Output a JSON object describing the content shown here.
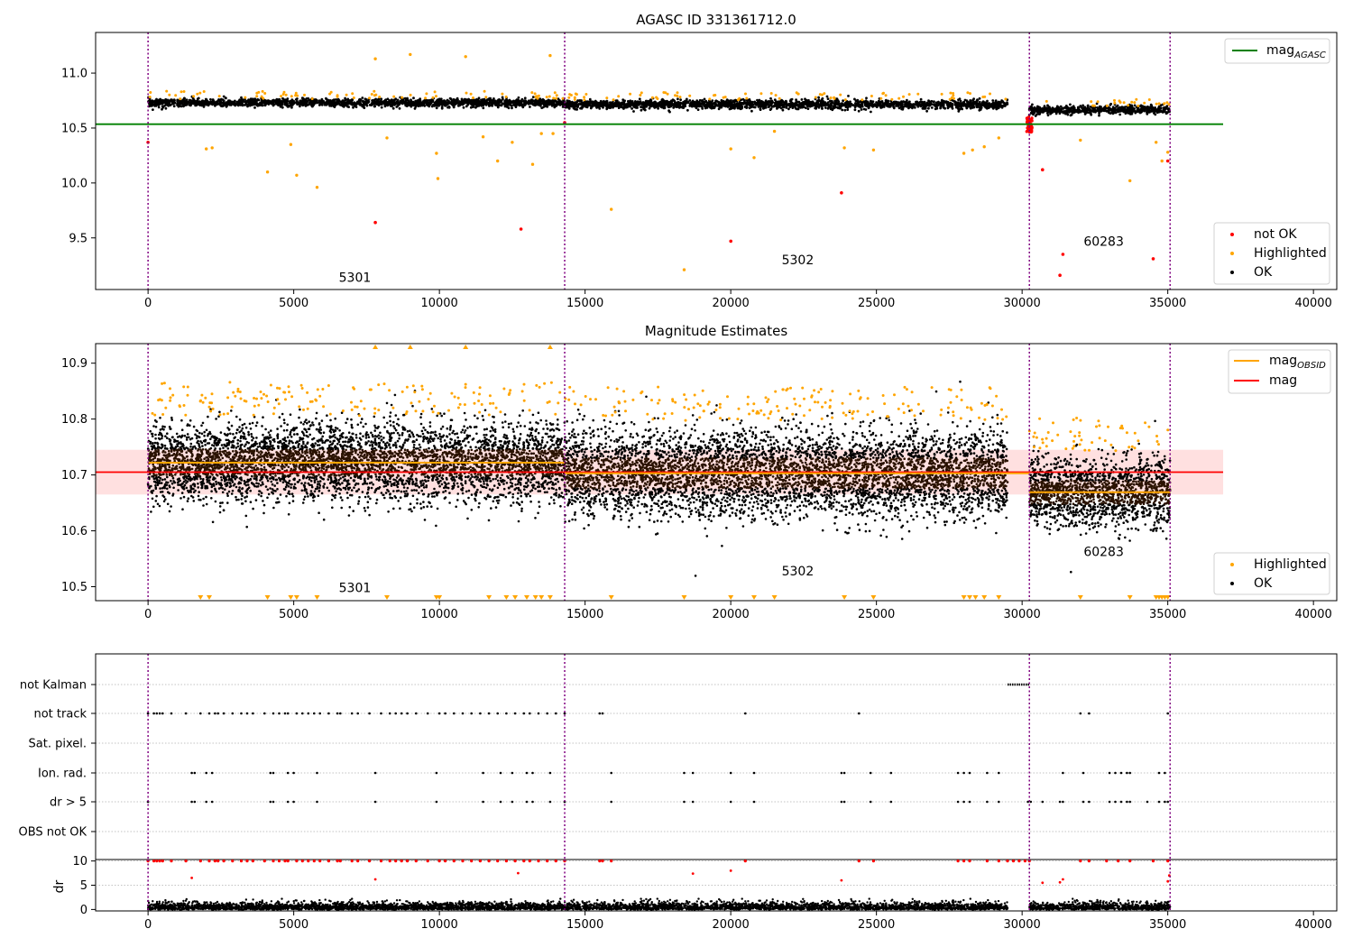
{
  "chart_data": [
    {
      "type": "scatter",
      "title": "AGASC ID 331361712.0",
      "xlim": [
        -1800,
        40800
      ],
      "ylim": [
        9.03,
        11.37
      ],
      "xticks": [
        0,
        5000,
        10000,
        15000,
        20000,
        25000,
        30000,
        35000,
        40000
      ],
      "yticks": [
        9.5,
        10.0,
        10.5,
        11.0
      ],
      "ytick_labels": [
        "9.5",
        "10.0",
        "10.5",
        "11.0"
      ],
      "reference_line": {
        "label": "mag",
        "label_sub": "AGASC",
        "y": 10.535,
        "x_range": [
          -1800,
          36900
        ],
        "color": "#008000"
      },
      "obsid_boundaries": [
        0,
        14300,
        30250,
        35080
      ],
      "obsid_labels": [
        {
          "text": "5301",
          "x": 7100,
          "y": 9.1
        },
        {
          "text": "5302",
          "x": 22300,
          "y": 9.26
        },
        {
          "text": "60283",
          "x": 32800,
          "y": 9.43
        }
      ],
      "series": [
        {
          "name": "not OK",
          "color": "#ff0000"
        },
        {
          "name": "Highlighted",
          "color": "#ffa500"
        },
        {
          "name": "OK",
          "color": "#000000"
        }
      ],
      "obs_segments": [
        {
          "x": [
            0,
            14300
          ],
          "center": 10.73,
          "spread": 0.04
        },
        {
          "x": [
            14300,
            29500
          ],
          "center": 10.715,
          "spread": 0.045
        },
        {
          "x": [
            30250,
            35080
          ],
          "center": 10.665,
          "spread": 0.04
        }
      ],
      "outliers_not_ok": [
        [
          0,
          10.37
        ],
        [
          7800,
          9.64
        ],
        [
          12800,
          9.58
        ],
        [
          20000,
          9.47
        ],
        [
          23800,
          9.91
        ],
        [
          30700,
          10.12
        ],
        [
          31300,
          9.16
        ],
        [
          31400,
          9.35
        ],
        [
          34500,
          9.31
        ],
        [
          35000,
          10.2
        ]
      ],
      "outliers_highlighted": [
        [
          2000,
          10.31
        ],
        [
          2200,
          10.32
        ],
        [
          4100,
          10.1
        ],
        [
          4900,
          10.35
        ],
        [
          5100,
          10.07
        ],
        [
          5800,
          9.96
        ],
        [
          7800,
          11.13
        ],
        [
          8200,
          10.41
        ],
        [
          9000,
          11.17
        ],
        [
          9900,
          10.27
        ],
        [
          9950,
          10.04
        ],
        [
          10900,
          11.15
        ],
        [
          11500,
          10.42
        ],
        [
          12000,
          10.2
        ],
        [
          12500,
          10.37
        ],
        [
          13200,
          10.17
        ],
        [
          13500,
          10.45
        ],
        [
          13800,
          11.16
        ],
        [
          13900,
          10.45
        ],
        [
          15900,
          9.76
        ],
        [
          18400,
          9.21
        ],
        [
          20000,
          10.31
        ],
        [
          20800,
          10.23
        ],
        [
          21500,
          10.47
        ],
        [
          23900,
          10.32
        ],
        [
          24900,
          10.3
        ],
        [
          28000,
          10.27
        ],
        [
          28300,
          10.3
        ],
        [
          28700,
          10.33
        ],
        [
          29200,
          10.41
        ],
        [
          32000,
          10.39
        ],
        [
          33700,
          10.02
        ],
        [
          34600,
          10.37
        ],
        [
          34800,
          10.2
        ],
        [
          35000,
          10.28
        ]
      ],
      "redcluster_x": 30250,
      "redcluster_y": [
        10.46,
        10.6
      ]
    },
    {
      "type": "scatter",
      "title": "Magnitude Estimates",
      "xlim": [
        -1800,
        40800
      ],
      "ylim": [
        10.475,
        10.935
      ],
      "xticks": [
        0,
        5000,
        10000,
        15000,
        20000,
        25000,
        30000,
        35000,
        40000
      ],
      "yticks": [
        10.5,
        10.6,
        10.7,
        10.8,
        10.9
      ],
      "ytick_labels": [
        "10.5",
        "10.6",
        "10.7",
        "10.8",
        "10.9"
      ],
      "legend": [
        {
          "label": "mag",
          "label_sub": "OBSID",
          "color": "#ffa500",
          "kind": "line"
        },
        {
          "label": "mag",
          "label_sub": "",
          "color": "#ff0000",
          "kind": "line"
        },
        {
          "label": "Highlighted",
          "color": "#ffa500",
          "kind": "point"
        },
        {
          "label": "OK",
          "color": "#000000",
          "kind": "point"
        }
      ],
      "mag": {
        "value": 10.705,
        "band": [
          10.665,
          10.745
        ],
        "x_range": [
          -1800,
          36900
        ]
      },
      "mag_obsid": [
        {
          "x": [
            0,
            14300
          ],
          "value": 10.722
        },
        {
          "x": [
            14300,
            30250
          ],
          "value": 10.703
        },
        {
          "x": [
            30250,
            35080
          ],
          "value": 10.669
        }
      ],
      "obsid_boundaries": [
        0,
        14300,
        30250,
        35080
      ],
      "obsid_labels": [
        {
          "text": "5301",
          "x": 7100,
          "y": 10.49
        },
        {
          "text": "5302",
          "x": 22300,
          "y": 10.52
        },
        {
          "text": "60283",
          "x": 32800,
          "y": 10.555
        }
      ],
      "obs_segments": [
        {
          "x": [
            0,
            14300
          ],
          "center": 10.722,
          "spread": 0.04
        },
        {
          "x": [
            14300,
            29500
          ],
          "center": 10.703,
          "spread": 0.045
        },
        {
          "x": [
            30250,
            35080
          ],
          "center": 10.669,
          "spread": 0.035
        }
      ],
      "lower_markers_x": [
        1800,
        2100,
        4100,
        4900,
        5100,
        5800,
        8200,
        9900,
        10000,
        11700,
        12300,
        12600,
        13000,
        13300,
        13500,
        13800,
        15900,
        18400,
        20000,
        20800,
        21500,
        23900,
        24900,
        28000,
        28200,
        28400,
        28700,
        29200,
        32000,
        33700,
        34600,
        34700,
        34800,
        34900,
        35000
      ],
      "upper_markers_x": [
        7800,
        9000,
        10900,
        13800
      ]
    },
    {
      "type": "scatter",
      "title": "",
      "xlim": [
        -1800,
        40800
      ],
      "xticks": [
        0,
        5000,
        10000,
        15000,
        20000,
        25000,
        30000,
        35000,
        40000
      ],
      "categories": [
        "not Kalman",
        "not track",
        "Sat. pixel.",
        "Ion. rad.",
        "dr > 5",
        "OBS not OK"
      ],
      "obsid_boundaries": [
        0,
        14300,
        30250,
        35080
      ],
      "not_kalman_x": [
        29500,
        30250
      ],
      "not_track_x": [
        0,
        200,
        300,
        400,
        500,
        800,
        1300,
        1800,
        2100,
        2300,
        2400,
        2600,
        2900,
        3200,
        3400,
        3600,
        4000,
        4300,
        4500,
        4700,
        4800,
        5100,
        5300,
        5500,
        5700,
        5900,
        6200,
        6500,
        6600,
        7000,
        7200,
        7600,
        8000,
        8300,
        8500,
        8700,
        8900,
        9200,
        9600,
        10000,
        10200,
        10500,
        10800,
        11100,
        11400,
        11700,
        12000,
        12300,
        12600,
        12900,
        13100,
        13400,
        13700,
        14000,
        14300,
        15500,
        15600,
        20500,
        24400,
        32000,
        32300,
        35000
      ],
      "ion_rad_x": [
        1500,
        1600,
        2000,
        2200,
        4200,
        4300,
        4800,
        5000,
        5800,
        7800,
        9900,
        11500,
        12100,
        12500,
        13000,
        13200,
        13800,
        15900,
        18400,
        18700,
        20000,
        20800,
        23800,
        23900,
        24800,
        25500,
        27800,
        28000,
        28200,
        28800,
        29200,
        31400,
        32100,
        33000,
        33200,
        33400,
        33600,
        33700,
        34700,
        34900
      ],
      "dr_gt5_x": [
        0,
        1500,
        1600,
        2000,
        2200,
        4200,
        4300,
        4800,
        5000,
        5800,
        7800,
        9900,
        11500,
        12100,
        12500,
        13000,
        13200,
        13800,
        14300,
        15900,
        18400,
        18700,
        20000,
        20800,
        23800,
        23900,
        24800,
        25500,
        27800,
        28000,
        28200,
        28800,
        29200,
        30200,
        30300,
        30700,
        31300,
        31400,
        32100,
        32300,
        33000,
        33200,
        33400,
        33600,
        33700,
        34300,
        34700,
        34900,
        35000
      ]
    },
    {
      "type": "scatter",
      "title": "",
      "ylabel": "dr",
      "xlim": [
        -1800,
        40800
      ],
      "ylim": [
        -0.3,
        10.3
      ],
      "xticks": [
        0,
        5000,
        10000,
        15000,
        20000,
        25000,
        30000,
        35000,
        40000
      ],
      "yticks": [
        0,
        5,
        10
      ],
      "ytick_labels": [
        "0",
        "5",
        "10"
      ],
      "obsid_boundaries": [
        0,
        14300,
        30250,
        35080
      ],
      "dr_segments": [
        [
          0,
          29500
        ],
        [
          30250,
          35080
        ]
      ],
      "dr_red_x": [
        0,
        200,
        300,
        400,
        500,
        800,
        1300,
        1800,
        2100,
        2300,
        2400,
        2600,
        2900,
        3200,
        3400,
        3600,
        4000,
        4300,
        4500,
        4700,
        4800,
        5100,
        5300,
        5500,
        5700,
        5900,
        6200,
        6500,
        6600,
        7000,
        7200,
        7600,
        8000,
        8300,
        8500,
        8700,
        8900,
        9200,
        9600,
        10000,
        10200,
        10500,
        10800,
        11100,
        11400,
        11700,
        12000,
        12300,
        12600,
        12900,
        13100,
        13400,
        13700,
        14000,
        14300,
        15500,
        15600,
        15900,
        20500,
        24400,
        24900,
        27800,
        28000,
        28200,
        28800,
        29200,
        29500,
        29700,
        29900,
        30100,
        30250,
        32000,
        32300,
        32900,
        33300,
        33700,
        34500,
        35000
      ],
      "dr_mid": [
        [
          1500,
          6.5
        ],
        [
          7800,
          6.2
        ],
        [
          12700,
          7.5
        ],
        [
          18700,
          7.4
        ],
        [
          20000,
          8.0
        ],
        [
          23800,
          6.0
        ],
        [
          30700,
          5.5
        ],
        [
          31300,
          5.6
        ],
        [
          31400,
          6.2
        ],
        [
          35000,
          5.8
        ],
        [
          35050,
          7.0
        ]
      ]
    }
  ]
}
